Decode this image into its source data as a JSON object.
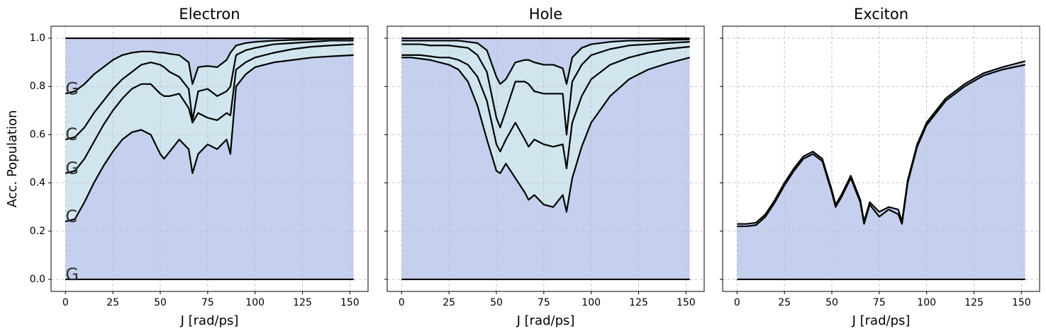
{
  "chart_data": [
    {
      "type": "line",
      "title": "Electron",
      "xlabel": "J [rad/ps]",
      "ylabel": "Acc. Population",
      "annotations": [
        "G",
        "C",
        "G",
        "C",
        "G"
      ],
      "xlim": [
        -7.6,
        159.6
      ],
      "xticks": [
        0,
        25,
        50,
        75,
        100,
        125,
        150
      ],
      "ylim": [
        -0.05,
        1.05
      ],
      "yticks": [
        {
          "value": 0,
          "label": "0.0"
        },
        0.2,
        0.4,
        0.6,
        0.8,
        {
          "value": 1,
          "label": "1.0"
        }
      ],
      "grid": true,
      "fill_colors": [
        "#c5d0ee",
        "#d1e5ee",
        "#d1e5ee",
        "#d1e5ee",
        "#c5d0ee"
      ],
      "x": [
        0,
        5,
        10,
        15,
        20,
        25,
        30,
        35,
        40,
        45,
        50,
        52,
        55,
        60,
        65,
        67,
        70,
        75,
        80,
        85,
        87,
        90,
        95,
        100,
        110,
        120,
        130,
        140,
        152
      ],
      "series": [
        {
          "color": "#000000",
          "values": [
            0,
            0,
            0,
            0,
            0,
            0,
            0,
            0,
            0,
            0,
            0,
            0,
            0,
            0,
            0,
            0,
            0,
            0,
            0,
            0,
            0,
            0,
            0,
            0,
            0,
            0,
            0,
            0,
            0
          ]
        },
        {
          "color": "#000000",
          "values": [
            0.24,
            0.25,
            0.32,
            0.4,
            0.47,
            0.53,
            0.58,
            0.61,
            0.62,
            0.6,
            0.52,
            0.5,
            0.53,
            0.58,
            0.54,
            0.44,
            0.52,
            0.56,
            0.54,
            0.58,
            0.52,
            0.8,
            0.85,
            0.88,
            0.9,
            0.91,
            0.92,
            0.925,
            0.93
          ]
        },
        {
          "color": "#000000",
          "values": [
            0.44,
            0.45,
            0.5,
            0.57,
            0.64,
            0.7,
            0.75,
            0.79,
            0.81,
            0.81,
            0.77,
            0.76,
            0.76,
            0.77,
            0.71,
            0.65,
            0.69,
            0.67,
            0.66,
            0.69,
            0.68,
            0.87,
            0.9,
            0.92,
            0.94,
            0.955,
            0.965,
            0.97,
            0.975
          ]
        },
        {
          "color": "#000000",
          "values": [
            0.58,
            0.59,
            0.63,
            0.69,
            0.74,
            0.79,
            0.83,
            0.86,
            0.89,
            0.9,
            0.89,
            0.88,
            0.86,
            0.84,
            0.79,
            0.66,
            0.78,
            0.79,
            0.76,
            0.78,
            0.8,
            0.93,
            0.95,
            0.96,
            0.975,
            0.98,
            0.985,
            0.99,
            0.99
          ]
        },
        {
          "color": "#000000",
          "values": [
            0.77,
            0.78,
            0.81,
            0.85,
            0.88,
            0.91,
            0.93,
            0.94,
            0.945,
            0.945,
            0.94,
            0.94,
            0.935,
            0.93,
            0.9,
            0.81,
            0.88,
            0.885,
            0.88,
            0.91,
            0.94,
            0.97,
            0.98,
            0.985,
            0.99,
            0.993,
            0.995,
            0.997,
            0.998
          ]
        },
        {
          "color": "#000000",
          "values": [
            1,
            1,
            1,
            1,
            1,
            1,
            1,
            1,
            1,
            1,
            1,
            1,
            1,
            1,
            1,
            1,
            1,
            1,
            1,
            1,
            1,
            1,
            1,
            1,
            1,
            1,
            1,
            1,
            1
          ]
        }
      ]
    },
    {
      "type": "line",
      "title": "Hole",
      "xlabel": "J [rad/ps]",
      "xlim": [
        -7.6,
        159.6
      ],
      "xticks": [
        0,
        25,
        50,
        75,
        100,
        125,
        150
      ],
      "grid": true,
      "fill_colors": [
        "#c5d0ee",
        "#d1e5ee",
        "#d1e5ee",
        "#d1e5ee",
        "#c5d0ee"
      ],
      "x": [
        0,
        5,
        10,
        15,
        20,
        25,
        30,
        35,
        40,
        45,
        50,
        52,
        55,
        60,
        65,
        67,
        70,
        75,
        80,
        85,
        87,
        90,
        95,
        100,
        110,
        120,
        130,
        140,
        152
      ],
      "series": [
        {
          "color": "#000000",
          "values": [
            0,
            0,
            0,
            0,
            0,
            0,
            0,
            0,
            0,
            0,
            0,
            0,
            0,
            0,
            0,
            0,
            0,
            0,
            0,
            0,
            0,
            0,
            0,
            0,
            0,
            0,
            0,
            0,
            0
          ]
        },
        {
          "color": "#000000",
          "values": [
            0.92,
            0.92,
            0.915,
            0.91,
            0.9,
            0.89,
            0.87,
            0.82,
            0.72,
            0.58,
            0.45,
            0.44,
            0.48,
            0.42,
            0.36,
            0.33,
            0.35,
            0.31,
            0.3,
            0.35,
            0.28,
            0.42,
            0.55,
            0.65,
            0.76,
            0.83,
            0.87,
            0.895,
            0.92
          ]
        },
        {
          "color": "#000000",
          "values": [
            0.93,
            0.93,
            0.93,
            0.925,
            0.92,
            0.92,
            0.91,
            0.89,
            0.84,
            0.74,
            0.56,
            0.53,
            0.58,
            0.65,
            0.58,
            0.55,
            0.58,
            0.56,
            0.55,
            0.56,
            0.46,
            0.65,
            0.76,
            0.83,
            0.89,
            0.92,
            0.94,
            0.955,
            0.965
          ]
        },
        {
          "color": "#000000",
          "values": [
            0.975,
            0.975,
            0.975,
            0.97,
            0.97,
            0.97,
            0.965,
            0.96,
            0.93,
            0.86,
            0.67,
            0.63,
            0.7,
            0.82,
            0.82,
            0.81,
            0.78,
            0.77,
            0.77,
            0.77,
            0.6,
            0.82,
            0.89,
            0.93,
            0.955,
            0.97,
            0.975,
            0.98,
            0.985
          ]
        },
        {
          "color": "#000000",
          "values": [
            0.99,
            0.99,
            0.99,
            0.99,
            0.99,
            0.99,
            0.99,
            0.985,
            0.98,
            0.95,
            0.84,
            0.81,
            0.83,
            0.9,
            0.91,
            0.91,
            0.9,
            0.89,
            0.89,
            0.875,
            0.81,
            0.92,
            0.96,
            0.975,
            0.985,
            0.99,
            0.99,
            0.993,
            0.995
          ]
        },
        {
          "color": "#000000",
          "values": [
            1,
            1,
            1,
            1,
            1,
            1,
            1,
            1,
            1,
            1,
            1,
            1,
            1,
            1,
            1,
            1,
            1,
            1,
            1,
            1,
            1,
            1,
            1,
            1,
            1,
            1,
            1,
            1,
            1
          ]
        }
      ]
    },
    {
      "type": "line",
      "title": "Exciton",
      "xlabel": "J [rad/ps]",
      "xlim": [
        -7.6,
        159.6
      ],
      "xticks": [
        0,
        25,
        50,
        75,
        100,
        125,
        150
      ],
      "grid": true,
      "fill_colors": [
        "#c5d0ee",
        "#c5d0ee"
      ],
      "x": [
        0,
        5,
        10,
        15,
        20,
        25,
        30,
        35,
        40,
        45,
        50,
        52,
        55,
        60,
        65,
        67,
        70,
        75,
        80,
        85,
        87,
        90,
        95,
        100,
        110,
        120,
        130,
        140,
        152
      ],
      "series": [
        {
          "color": "#000000",
          "values": [
            0,
            0,
            0,
            0,
            0,
            0,
            0,
            0,
            0,
            0,
            0,
            0,
            0,
            0,
            0,
            0,
            0,
            0,
            0,
            0,
            0,
            0,
            0,
            0,
            0,
            0,
            0,
            0,
            0
          ]
        },
        {
          "color": "#000000",
          "values": [
            0.22,
            0.22,
            0.225,
            0.26,
            0.32,
            0.39,
            0.45,
            0.5,
            0.52,
            0.49,
            0.36,
            0.3,
            0.34,
            0.42,
            0.32,
            0.23,
            0.31,
            0.26,
            0.29,
            0.27,
            0.23,
            0.4,
            0.55,
            0.64,
            0.74,
            0.8,
            0.845,
            0.87,
            0.89
          ]
        },
        {
          "color": "#000000",
          "values": [
            0.23,
            0.23,
            0.235,
            0.27,
            0.33,
            0.4,
            0.46,
            0.51,
            0.53,
            0.5,
            0.37,
            0.31,
            0.35,
            0.43,
            0.33,
            0.24,
            0.32,
            0.28,
            0.3,
            0.29,
            0.24,
            0.41,
            0.56,
            0.65,
            0.75,
            0.81,
            0.855,
            0.88,
            0.905
          ]
        }
      ]
    }
  ]
}
